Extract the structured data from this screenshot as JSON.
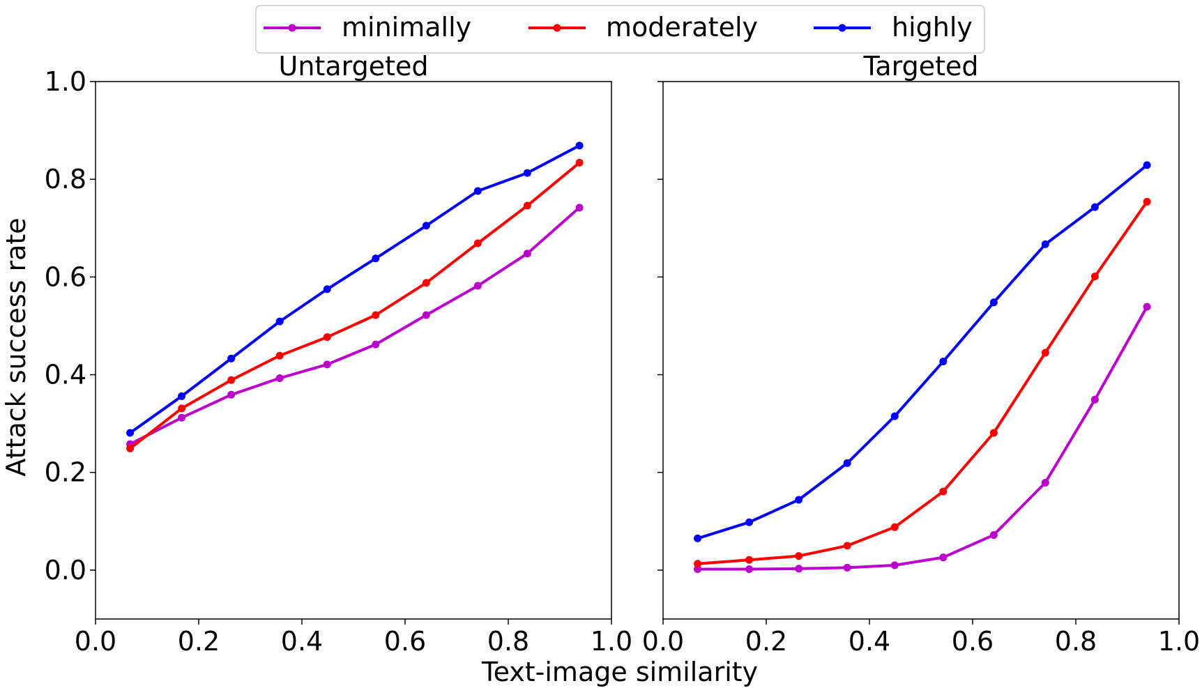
{
  "chart_data": [
    {
      "type": "line",
      "title": "Untargeted",
      "xlabel": "Text-image similarity",
      "ylabel": "Attack success rate",
      "xlim": [
        0.0,
        1.0
      ],
      "ylim": [
        -0.1,
        1.0
      ],
      "xticks": [
        "0.0",
        "0.2",
        "0.4",
        "0.6",
        "0.8",
        "1.0"
      ],
      "yticks": [
        "0.0",
        "0.2",
        "0.4",
        "0.6",
        "0.8",
        "1.0"
      ],
      "x": [
        0.067,
        0.167,
        0.263,
        0.357,
        0.449,
        0.543,
        0.641,
        0.741,
        0.837,
        0.938
      ],
      "series": [
        {
          "name": "minimally",
          "color": "#bb00cc",
          "values": [
            0.258,
            0.312,
            0.359,
            0.393,
            0.421,
            0.462,
            0.522,
            0.582,
            0.648,
            0.742
          ]
        },
        {
          "name": "moderately",
          "color": "#ff0000",
          "values": [
            0.249,
            0.331,
            0.389,
            0.439,
            0.477,
            0.522,
            0.588,
            0.669,
            0.746,
            0.834
          ]
        },
        {
          "name": "highly",
          "color": "#0000ff",
          "values": [
            0.281,
            0.356,
            0.433,
            0.509,
            0.575,
            0.638,
            0.705,
            0.776,
            0.813,
            0.869
          ]
        }
      ]
    },
    {
      "type": "line",
      "title": "Targeted",
      "xlabel": "Text-image similarity",
      "ylabel": "",
      "xlim": [
        0.0,
        1.0
      ],
      "ylim": [
        -0.1,
        1.0
      ],
      "xticks": [
        "0.0",
        "0.2",
        "0.4",
        "0.6",
        "0.8",
        "1.0"
      ],
      "yticks": [],
      "x": [
        0.067,
        0.167,
        0.263,
        0.357,
        0.449,
        0.543,
        0.641,
        0.741,
        0.837,
        0.938
      ],
      "series": [
        {
          "name": "minimally",
          "color": "#bb00cc",
          "values": [
            0.002,
            0.002,
            0.003,
            0.005,
            0.01,
            0.026,
            0.072,
            0.179,
            0.349,
            0.539
          ]
        },
        {
          "name": "moderately",
          "color": "#ff0000",
          "values": [
            0.013,
            0.021,
            0.029,
            0.05,
            0.088,
            0.161,
            0.281,
            0.445,
            0.601,
            0.754
          ]
        },
        {
          "name": "highly",
          "color": "#0000ff",
          "values": [
            0.065,
            0.098,
            0.144,
            0.219,
            0.315,
            0.427,
            0.548,
            0.667,
            0.743,
            0.829
          ]
        }
      ]
    }
  ],
  "legend": {
    "items": [
      {
        "label": "minimally",
        "color": "#bb00cc"
      },
      {
        "label": "moderately",
        "color": "#ff0000"
      },
      {
        "label": "highly",
        "color": "#0000ff"
      }
    ]
  },
  "shared_xlabel": "Text-image similarity",
  "shared_ylabel": "Attack success rate"
}
